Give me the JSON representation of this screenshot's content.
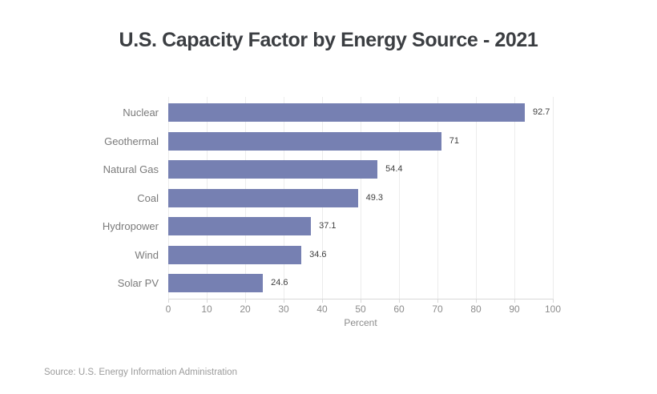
{
  "title": "U.S. Capacity Factor by Energy Source - 2021",
  "source": "Source: U.S. Energy Information Administration",
  "colors": {
    "background": "#ffffff",
    "bar": "#7680b2",
    "title": "#3b3e42",
    "category_label": "#7a7a7a",
    "value_label": "#3f3f3f",
    "grid": "#ececec",
    "axis": "#d9d9d9",
    "tick_label": "#8c8c8c",
    "source": "#9b9b9b"
  },
  "chart_data": {
    "type": "bar",
    "orientation": "horizontal",
    "title": "U.S. Capacity Factor by Energy Source - 2021",
    "categories": [
      "Nuclear",
      "Geothermal",
      "Natural Gas",
      "Coal",
      "Hydropower",
      "Wind",
      "Solar PV"
    ],
    "values": [
      92.7,
      71,
      54.4,
      49.3,
      37.1,
      34.6,
      24.6
    ],
    "value_labels": [
      "92.7",
      "71",
      "54.4",
      "49.3",
      "37.1",
      "34.6",
      "24.6"
    ],
    "xlabel": "Percent",
    "xlim": [
      0,
      100
    ],
    "xticks": [
      0,
      10,
      20,
      30,
      40,
      50,
      60,
      70,
      80,
      90,
      100
    ],
    "grid": true,
    "legend": false,
    "source": "Source: U.S. Energy Information Administration"
  }
}
